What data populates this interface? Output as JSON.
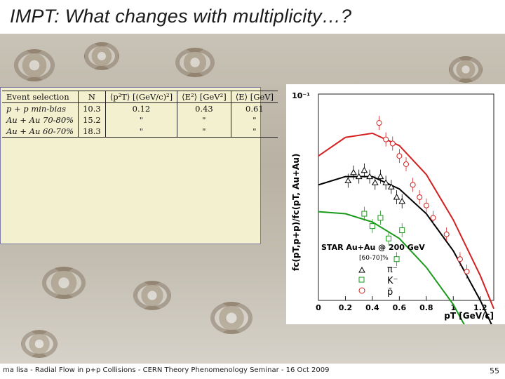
{
  "slide": {
    "title": "IMPT: What changes with multiplicity…?",
    "footer": "ma lisa - Radial Flow in p+p Collisions - CERN Theory Phenomenology Seminar - 16 Oct 2009",
    "page_number": "55"
  },
  "table": {
    "headers": [
      "Event selection",
      "N",
      "⟨p²T⟩ [(GeV/c)²]",
      "⟨E²⟩ [GeV²]",
      "⟨E⟩ [GeV]"
    ],
    "rows": [
      [
        "p + p min-bias",
        "10.3",
        "0.12",
        "0.43",
        "0.61"
      ],
      [
        "Au + Au 70-80%",
        "15.2",
        "\"",
        "\"",
        "\""
      ],
      [
        "Au + Au 60-70%",
        "18.3",
        "\"",
        "\"",
        "\""
      ]
    ]
  },
  "plot": {
    "ylabel": "fc(pT,p+p)/fc(pT, Au+Au)",
    "xlabel": "pT [GeV/c]",
    "y_top_tick": "10⁻¹",
    "legend_title": "STAR Au+Au @ 200 GeV",
    "legend_sub": "[60-70]%",
    "legend_items": [
      "π⁻",
      "K⁻",
      "p̄"
    ],
    "x_ticks": [
      "0",
      "0.2",
      "0.4",
      "0.6",
      "0.8",
      "1",
      "1.2"
    ]
  },
  "chart_data": {
    "type": "scatter",
    "x": [
      0.0,
      0.2,
      0.4,
      0.6,
      0.8,
      1.0,
      1.2
    ],
    "series": [
      {
        "name": "π⁻",
        "color": "#000000",
        "marker": "triangle",
        "x": [
          0.22,
          0.26,
          0.3,
          0.34,
          0.38,
          0.42,
          0.46,
          0.5,
          0.54,
          0.58,
          0.62
        ],
        "y": [
          0.58,
          0.62,
          0.6,
          0.63,
          0.6,
          0.57,
          0.6,
          0.57,
          0.55,
          0.5,
          0.48
        ]
      },
      {
        "name": "K⁻",
        "color": "#1a9a1a",
        "marker": "square",
        "x": [
          0.34,
          0.4,
          0.46,
          0.52,
          0.58,
          0.62
        ],
        "y": [
          0.42,
          0.36,
          0.4,
          0.3,
          0.2,
          0.34
        ]
      },
      {
        "name": "p̄",
        "color": "#d42020",
        "marker": "circle",
        "x": [
          0.45,
          0.5,
          0.55,
          0.6,
          0.65,
          0.7,
          0.75,
          0.8,
          0.85,
          0.95,
          1.05,
          1.1
        ],
        "y": [
          0.86,
          0.78,
          0.76,
          0.7,
          0.66,
          0.56,
          0.5,
          0.46,
          0.4,
          0.32,
          0.2,
          0.14
        ]
      }
    ],
    "curves": [
      {
        "name": "p̄ fit",
        "color": "#d42020",
        "x": [
          0,
          0.2,
          0.4,
          0.6,
          0.8,
          1.0,
          1.2,
          1.3
        ],
        "y": [
          0.7,
          0.79,
          0.81,
          0.75,
          0.61,
          0.39,
          0.12,
          -0.04
        ]
      },
      {
        "name": "π⁻ fit",
        "color": "#000000",
        "x": [
          0,
          0.2,
          0.4,
          0.6,
          0.8,
          1.0,
          1.2,
          1.3
        ],
        "y": [
          0.56,
          0.6,
          0.6,
          0.54,
          0.42,
          0.24,
          0.0,
          -0.14
        ]
      },
      {
        "name": "K⁻ fit",
        "color": "#1a9a1a",
        "x": [
          0,
          0.2,
          0.4,
          0.6,
          0.8,
          1.0,
          1.2,
          1.3
        ],
        "y": [
          0.43,
          0.42,
          0.38,
          0.3,
          0.16,
          -0.02,
          -0.26,
          -0.4
        ]
      }
    ],
    "xlim": [
      0,
      1.3
    ]
  }
}
